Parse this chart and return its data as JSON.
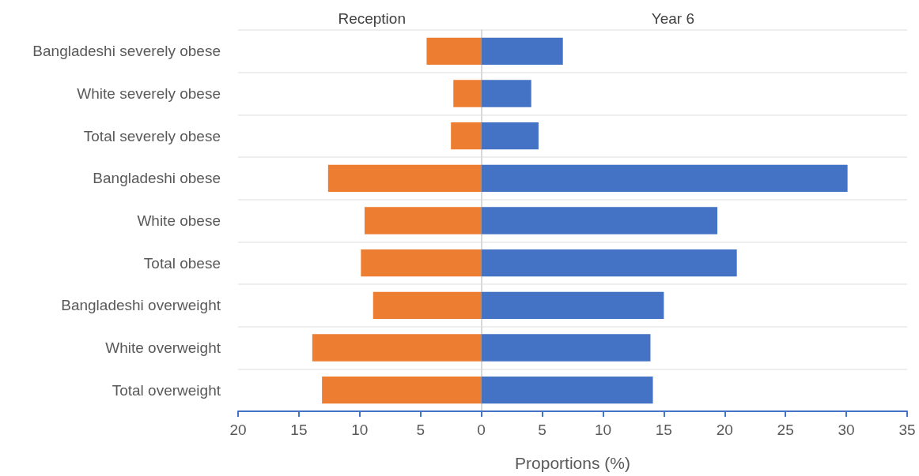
{
  "chart_data": {
    "type": "bar",
    "orientation": "horizontal",
    "xlabel": "Proportions (%)",
    "categories": [
      "Bangladeshi severely obese",
      "White severely obese",
      "Total severely obese",
      "Bangladeshi obese",
      "White obese",
      "Total obese",
      "Bangladeshi overweight",
      "White overweight",
      "Total overweight"
    ],
    "series": [
      {
        "name": "Reception",
        "color": "#ed7d31",
        "values": [
          -4.5,
          -2.3,
          -2.5,
          -12.6,
          -9.6,
          -9.9,
          -8.9,
          -13.9,
          -13.1
        ]
      },
      {
        "name": "Year 6",
        "color": "#4472c4",
        "values": [
          6.7,
          4.1,
          4.7,
          30.1,
          19.4,
          21.0,
          15.0,
          13.9,
          14.1
        ]
      }
    ],
    "xlim": [
      -20,
      35
    ],
    "xticks": [
      {
        "value": -20,
        "label": "20"
      },
      {
        "value": -15,
        "label": "15"
      },
      {
        "value": -10,
        "label": "10"
      },
      {
        "value": -5,
        "label": "5"
      },
      0,
      5,
      10,
      15,
      20,
      25,
      30,
      35
    ],
    "grid": "y",
    "legend": false,
    "stacked": true
  }
}
